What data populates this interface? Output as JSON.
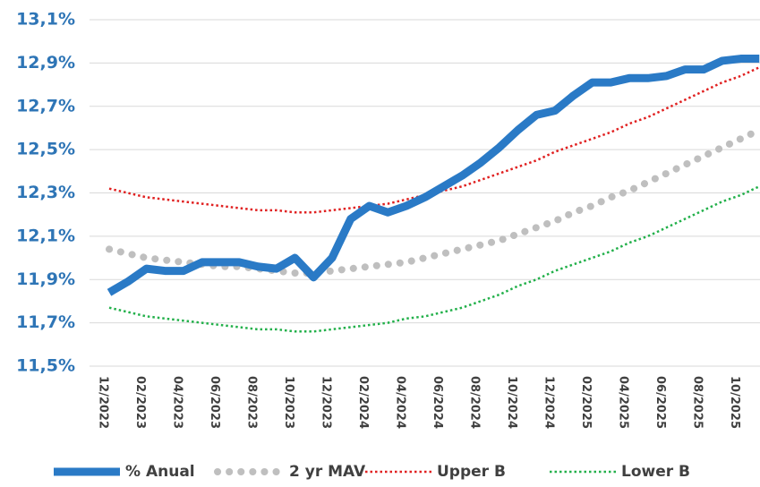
{
  "chart_data": {
    "type": "line",
    "categories": [
      "12/2022",
      null,
      "02/2023",
      null,
      "04/2023",
      null,
      "06/2023",
      null,
      "08/2023",
      null,
      "10/2023",
      null,
      "12/2023",
      null,
      "02/2024",
      null,
      "04/2024",
      null,
      "06/2024",
      null,
      "08/2024",
      null,
      "10/2024",
      null,
      "12/2024",
      null,
      "02/2025",
      null,
      "04/2025",
      null,
      "06/2025",
      null,
      "08/2025",
      null,
      "10/2025",
      null
    ],
    "series": [
      {
        "name": "% Anual",
        "color": "#2a7ac6",
        "style": "solid-thick",
        "values": [
          11.84,
          11.89,
          11.95,
          11.94,
          11.94,
          11.98,
          11.98,
          11.98,
          11.96,
          11.95,
          12.0,
          11.91,
          12.0,
          12.18,
          12.24,
          12.21,
          12.24,
          12.28,
          12.33,
          12.38,
          12.44,
          12.51,
          12.59,
          12.66,
          12.68,
          12.75,
          12.81,
          12.81,
          12.83,
          12.83,
          12.84,
          12.87,
          12.87,
          12.91,
          12.92,
          12.92
        ]
      },
      {
        "name": "2 yr MAV",
        "color": "#bfbfbf",
        "style": "round-dots",
        "values": [
          12.04,
          12.02,
          12.0,
          11.99,
          11.98,
          11.97,
          11.96,
          11.96,
          11.95,
          11.94,
          11.93,
          11.93,
          11.94,
          11.95,
          11.96,
          11.97,
          11.98,
          12.0,
          12.02,
          12.04,
          12.06,
          12.08,
          12.11,
          12.14,
          12.17,
          12.21,
          12.24,
          12.28,
          12.31,
          12.35,
          12.39,
          12.43,
          12.47,
          12.51,
          12.55,
          12.59
        ]
      },
      {
        "name": "Upper B",
        "color": "#e02020",
        "style": "dotted",
        "values": [
          12.32,
          12.3,
          12.28,
          12.27,
          12.26,
          12.25,
          12.24,
          12.23,
          12.22,
          12.22,
          12.21,
          12.21,
          12.22,
          12.23,
          12.24,
          12.25,
          12.27,
          12.29,
          12.31,
          12.33,
          12.36,
          12.39,
          12.42,
          12.45,
          12.49,
          12.52,
          12.55,
          12.58,
          12.62,
          12.65,
          12.69,
          12.73,
          12.77,
          12.81,
          12.84,
          12.88
        ]
      },
      {
        "name": "Lower B",
        "color": "#22b04a",
        "style": "dotted",
        "values": [
          11.77,
          11.75,
          11.73,
          11.72,
          11.71,
          11.7,
          11.69,
          11.68,
          11.67,
          11.67,
          11.66,
          11.66,
          11.67,
          11.68,
          11.69,
          11.7,
          11.72,
          11.73,
          11.75,
          11.77,
          11.8,
          11.83,
          11.87,
          11.9,
          11.94,
          11.97,
          12.0,
          12.03,
          12.07,
          12.1,
          12.14,
          12.18,
          12.22,
          12.26,
          12.29,
          12.33
        ]
      }
    ],
    "ylim": [
      11.5,
      13.1
    ],
    "yticks": [
      {
        "value": 11.5,
        "label": "11,5%"
      },
      {
        "value": 11.7,
        "label": "11,7%"
      },
      {
        "value": 11.9,
        "label": "11,9%"
      },
      {
        "value": 12.1,
        "label": "12,1%"
      },
      {
        "value": 12.3,
        "label": "12,3%"
      },
      {
        "value": 12.5,
        "label": "12,5%"
      },
      {
        "value": 12.7,
        "label": "12,7%"
      },
      {
        "value": 12.9,
        "label": "12,9%"
      },
      {
        "value": 13.1,
        "label": "13,1%"
      }
    ],
    "grid": true,
    "legend": "bottom"
  }
}
